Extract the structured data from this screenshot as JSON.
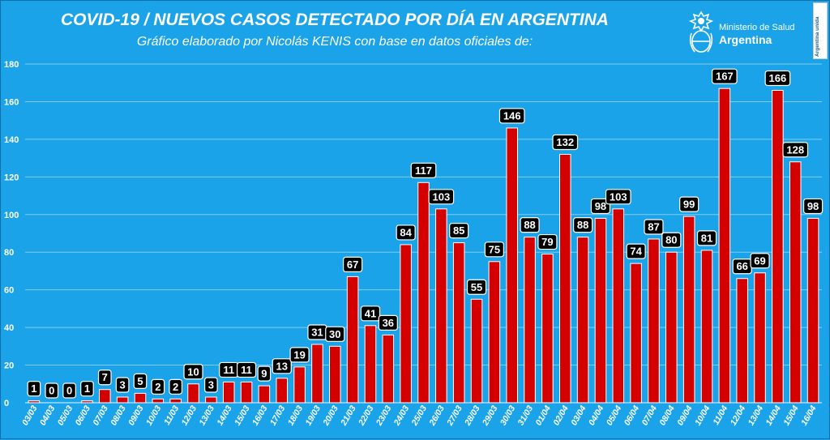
{
  "header": {
    "title": "COVID-19  /  NUEVOS CASOS DETECTADO POR DÍA EN ARGENTINA",
    "subtitle": "Gráfico elaborado por Nicolás KENIS con base en datos oficiales de:",
    "logo_line1": "Ministerio de Salud",
    "logo_line2": "Argentina",
    "badge": "Argentina unida"
  },
  "colors": {
    "background": "#1aa3e8",
    "bar": "#d40000",
    "label_bg": "#000000",
    "text": "#ffffff"
  },
  "chart_data": {
    "type": "bar",
    "title": "COVID-19  /  NUEVOS CASOS DETECTADO POR DÍA EN ARGENTINA",
    "xlabel": "",
    "ylabel": "",
    "ylim": [
      0,
      180
    ],
    "yticks": [
      0,
      20,
      40,
      60,
      80,
      100,
      120,
      140,
      160,
      180
    ],
    "grid": true,
    "categories": [
      "03/03",
      "04/03",
      "05/03",
      "06/03",
      "07/03",
      "08/03",
      "09/03",
      "10/03",
      "11/03",
      "12/03",
      "13/03",
      "14/03",
      "15/03",
      "16/03",
      "17/03",
      "18/03",
      "19/03",
      "20/03",
      "21/03",
      "22/03",
      "23/03",
      "24/03",
      "25/03",
      "26/03",
      "27/03",
      "28/03",
      "29/03",
      "30/03",
      "31/03",
      "01/04",
      "02/04",
      "03/04",
      "04/04",
      "05/04",
      "06/04",
      "07/04",
      "08/04",
      "09/04",
      "10/04",
      "11/04",
      "12/04",
      "13/04",
      "14/04",
      "15/04",
      "16/04"
    ],
    "values": [
      1,
      0,
      0,
      1,
      7,
      3,
      5,
      2,
      2,
      10,
      3,
      11,
      11,
      9,
      13,
      19,
      31,
      30,
      67,
      41,
      36,
      84,
      117,
      103,
      85,
      55,
      75,
      146,
      88,
      79,
      132,
      88,
      98,
      103,
      74,
      87,
      80,
      99,
      81,
      167,
      66,
      69,
      166,
      128,
      98
    ]
  }
}
